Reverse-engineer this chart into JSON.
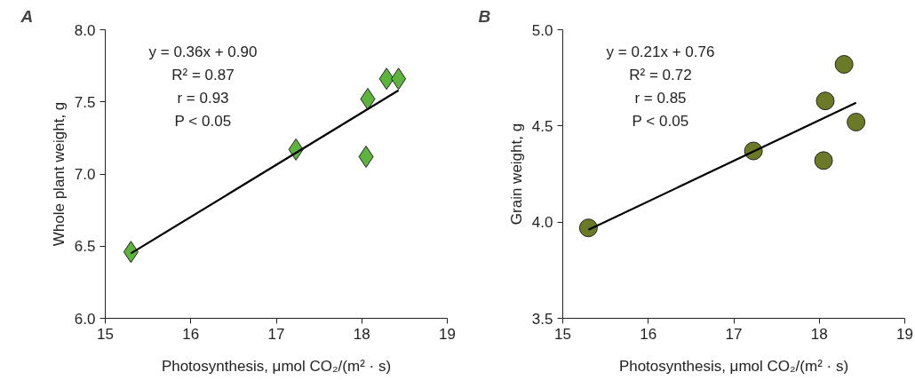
{
  "chart_data": [
    {
      "type": "scatter",
      "title": "A",
      "xlabel": "Photosynthesis, μmol CO₂/(m² · s)",
      "ylabel": "Whole plant weight, g",
      "xlim": [
        15,
        19
      ],
      "xticks": [
        15,
        16,
        17,
        18,
        19
      ],
      "ylim": [
        6.0,
        8.0
      ],
      "yticks": [
        {
          "value": 6.0,
          "label": "6.0"
        },
        6.5,
        {
          "value": 7.0,
          "label": "7.0"
        },
        7.5,
        {
          "value": 8.0,
          "label": "8.0"
        }
      ],
      "grid": false,
      "marker": "diamond",
      "annotations": [
        "y = 0.36x + 0.90",
        "R² = 0.87",
        "r = 0.93",
        "P < 0.05"
      ],
      "series": [
        {
          "color": "#5cb43c",
          "x": [
            15.3,
            17.23,
            18.05,
            18.07,
            18.29,
            18.43
          ],
          "values": [
            6.46,
            7.17,
            7.12,
            7.52,
            7.66,
            7.66
          ]
        },
        {
          "type": "line",
          "marker": "none",
          "color": "#000000",
          "x": [
            15.3,
            18.43
          ],
          "values": [
            6.45,
            7.58
          ]
        }
      ]
    },
    {
      "type": "scatter",
      "title": "B",
      "xlabel": "Photosynthesis, μmol CO₂/(m² · s)",
      "ylabel": "Grain weight, g",
      "xlim": [
        15,
        19
      ],
      "xticks": [
        15,
        16,
        17,
        18,
        19
      ],
      "ylim": [
        3.5,
        5.0
      ],
      "yticks": [
        3.5,
        {
          "value": 4.0,
          "label": "4.0"
        },
        4.5,
        {
          "value": 5.0,
          "label": "5.0"
        }
      ],
      "grid": false,
      "marker": "circle",
      "annotations": [
        "y = 0.21x + 0.76",
        "R² = 0.72",
        "r = 0.85",
        "P < 0.05"
      ],
      "series": [
        {
          "color": "#6b7a26",
          "x": [
            15.3,
            17.23,
            18.05,
            18.07,
            18.29,
            18.43
          ],
          "values": [
            3.97,
            4.37,
            4.32,
            4.63,
            4.82,
            4.52
          ]
        },
        {
          "type": "line",
          "marker": "none",
          "color": "#000000",
          "x": [
            15.3,
            18.43
          ],
          "values": [
            3.96,
            4.62
          ]
        }
      ]
    }
  ]
}
